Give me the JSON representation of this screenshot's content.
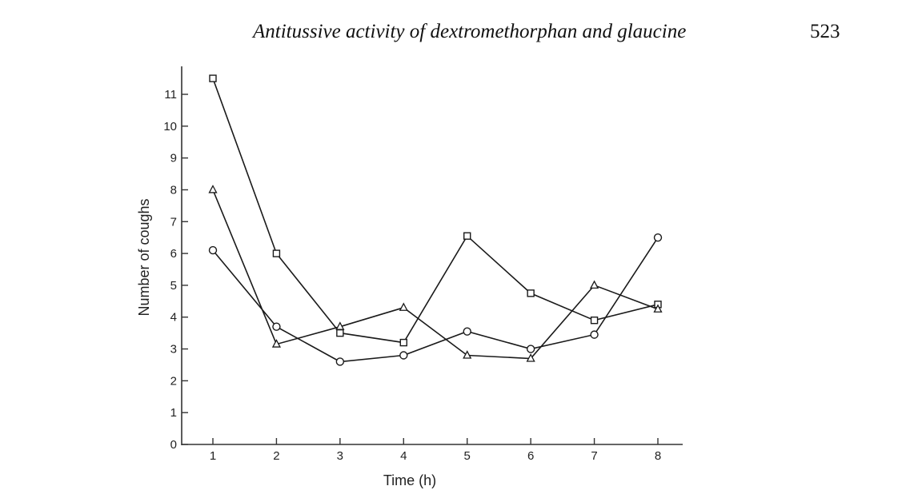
{
  "running_head": "Antitussive activity of dextromethorphan and glaucine",
  "page_number": "523",
  "chart_data": {
    "type": "line",
    "xlabel": "Time (h)",
    "ylabel": "Number of coughs",
    "x": [
      1,
      2,
      3,
      4,
      5,
      6,
      7,
      8
    ],
    "x_ticks": [
      "1",
      "2",
      "3",
      "4",
      "5",
      "6",
      "7",
      "8"
    ],
    "y_ticks": [
      "0",
      "1",
      "2",
      "3",
      "4",
      "5",
      "6",
      "7",
      "8",
      "9",
      "10",
      "11"
    ],
    "ylim": [
      0,
      11.5
    ],
    "xlim": [
      0.5,
      8.4
    ],
    "grid": false,
    "series": [
      {
        "marker": "square",
        "values": [
          11.5,
          6.0,
          3.5,
          3.2,
          6.55,
          4.75,
          3.9,
          4.4
        ]
      },
      {
        "marker": "triangle",
        "values": [
          8.0,
          3.15,
          3.7,
          4.3,
          2.8,
          2.7,
          5.0,
          4.25
        ]
      },
      {
        "marker": "circle",
        "values": [
          6.1,
          3.7,
          2.6,
          2.8,
          3.55,
          3.0,
          3.45,
          6.5
        ]
      }
    ],
    "line_color": "#1a1a1a",
    "axis_color": "#333333"
  }
}
